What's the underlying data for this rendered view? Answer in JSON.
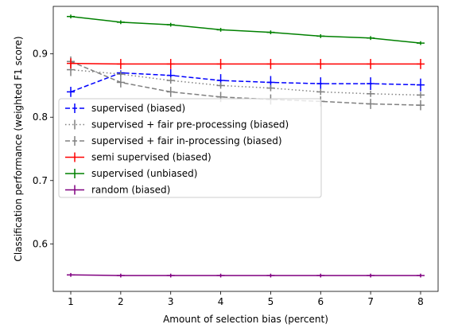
{
  "chart_data": {
    "type": "line",
    "title": "",
    "xlabel": "Amount of selection bias (percent)",
    "ylabel": "Classification performance (weighted F1 score)",
    "x": [
      1,
      2,
      3,
      4,
      5,
      6,
      7,
      8
    ],
    "xlim": [
      0.65,
      8.35
    ],
    "ylim": [
      0.525,
      0.975
    ],
    "xticks": [
      "1",
      "2",
      "3",
      "4",
      "5",
      "6",
      "7",
      "8"
    ],
    "yticks": [
      "0.6",
      "0.7",
      "0.8",
      "0.9"
    ],
    "ytick_values": [
      0.6,
      0.7,
      0.8,
      0.9
    ],
    "legend_position": "center-left",
    "series": [
      {
        "name": "supervised (biased)",
        "color": "#0000ff",
        "dash": "dashed",
        "values": [
          0.84,
          0.87,
          0.866,
          0.858,
          0.855,
          0.853,
          0.853,
          0.851
        ],
        "errors": [
          0.008,
          0.004,
          0.01,
          0.01,
          0.01,
          0.01,
          0.01,
          0.01
        ]
      },
      {
        "name": "supervised + fair pre-processing (biased)",
        "color": "#808080",
        "dash": "dotted",
        "values": [
          0.875,
          0.868,
          0.858,
          0.85,
          0.846,
          0.84,
          0.837,
          0.835
        ],
        "errors": [
          0.01,
          0.005,
          0.005,
          0.005,
          0.005,
          0.005,
          0.005,
          0.005
        ]
      },
      {
        "name": "supervised + fair in-processing (biased)",
        "color": "#808080",
        "dash": "dashed",
        "values": [
          0.888,
          0.855,
          0.84,
          0.832,
          0.828,
          0.825,
          0.821,
          0.819
        ],
        "errors": [
          0.008,
          0.008,
          0.008,
          0.008,
          0.008,
          0.008,
          0.008,
          0.008
        ]
      },
      {
        "name": "semi supervised (biased)",
        "color": "#ff0000",
        "dash": "solid",
        "values": [
          0.885,
          0.884,
          0.884,
          0.884,
          0.884,
          0.884,
          0.884,
          0.884
        ],
        "errors": [
          0.008,
          0.008,
          0.008,
          0.008,
          0.008,
          0.008,
          0.008,
          0.008
        ]
      },
      {
        "name": "supervised (unbiased)",
        "color": "#008000",
        "dash": "solid",
        "values": [
          0.959,
          0.95,
          0.946,
          0.938,
          0.934,
          0.928,
          0.925,
          0.917
        ],
        "errors": [
          0.003,
          0.003,
          0.003,
          0.003,
          0.003,
          0.003,
          0.003,
          0.003
        ]
      },
      {
        "name": "random (biased)",
        "color": "#800080",
        "dash": "solid",
        "values": [
          0.551,
          0.55,
          0.55,
          0.55,
          0.55,
          0.55,
          0.55,
          0.55
        ],
        "errors": [
          0.003,
          0.003,
          0.003,
          0.003,
          0.003,
          0.003,
          0.003,
          0.003
        ]
      }
    ]
  }
}
